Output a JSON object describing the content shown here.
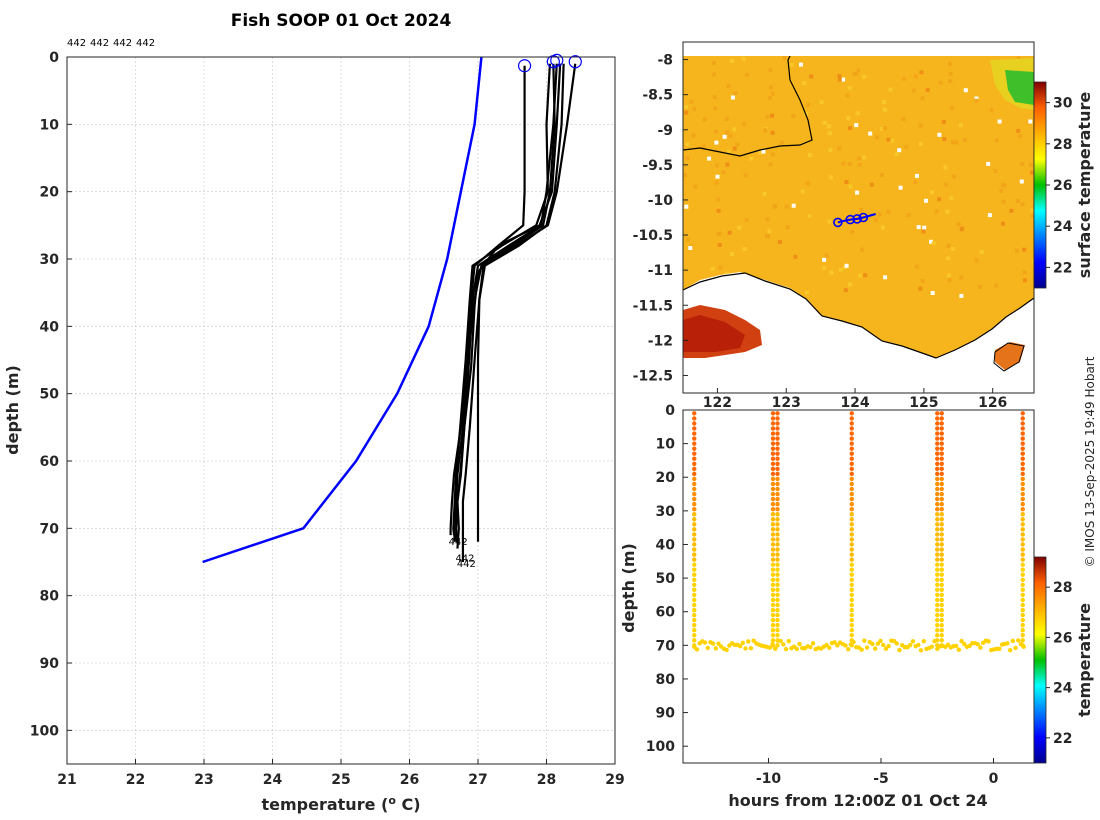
{
  "chart_data": [
    {
      "type": "line",
      "title": "Fish SOOP 01 Oct 2024",
      "xlabel": "temperature (",
      "xlabel_sup": "o",
      "xlabel_tail": " C)",
      "ylabel": "depth (m)",
      "xlim": [
        21,
        29
      ],
      "ylim": [
        0,
        105
      ],
      "xticks": [
        21,
        22,
        23,
        24,
        25,
        26,
        27,
        28,
        29
      ],
      "yticks": [
        0,
        10,
        20,
        30,
        40,
        50,
        60,
        70,
        80,
        90,
        100
      ],
      "header_labels": [
        "442",
        "442",
        "442",
        "442"
      ],
      "end_labels": [
        "442",
        "442",
        "442"
      ],
      "climatology": {
        "name": "climatology",
        "color": "#0000ff",
        "temperature": [
          27.05,
          26.95,
          26.75,
          26.55,
          26.28,
          25.82,
          25.22,
          24.45,
          22.98
        ],
        "depth": [
          0,
          10,
          20,
          30,
          40,
          50,
          60,
          70,
          75
        ]
      },
      "profiles": [
        {
          "temperature": [
            27.68,
            27.68,
            27.68,
            27.66,
            27.3,
            26.95,
            26.9,
            26.85,
            26.75,
            26.65,
            26.62,
            26.6,
            26.6
          ],
          "depth": [
            1.3,
            10,
            20,
            25,
            28,
            31,
            36,
            45,
            55,
            62,
            66,
            70,
            71
          ]
        },
        {
          "temperature": [
            28.1,
            28.12,
            28.05,
            27.95,
            27.5,
            27.05,
            26.95,
            26.85,
            26.78,
            26.7,
            26.68,
            26.65,
            26.66
          ],
          "depth": [
            1,
            10,
            20,
            25,
            28,
            31,
            36,
            45,
            55,
            62,
            66,
            70,
            72
          ]
        },
        {
          "temperature": [
            28.2,
            28.15,
            28.08,
            27.9,
            27.3,
            27.0,
            26.95,
            26.9,
            26.8,
            26.75,
            26.7,
            26.72,
            26.7
          ],
          "depth": [
            1,
            10,
            20,
            25,
            28,
            32,
            37,
            46,
            55,
            62,
            66,
            70,
            73
          ]
        },
        {
          "temperature": [
            28.05,
            28.0,
            28.02,
            27.85,
            27.35,
            26.92,
            26.88,
            26.82,
            26.74,
            26.68,
            26.66,
            26.64,
            26.65
          ],
          "depth": [
            1,
            10,
            20,
            25,
            28,
            31,
            36,
            45,
            55,
            62,
            66,
            70,
            71
          ]
        },
        {
          "temperature": [
            28.25,
            28.22,
            28.12,
            28.0,
            27.6,
            27.1,
            27.02,
            26.95,
            26.88,
            26.82,
            26.78,
            26.78,
            26.78
          ],
          "depth": [
            1,
            10,
            20,
            25,
            28,
            31,
            36,
            45,
            55,
            62,
            66,
            70,
            75
          ]
        },
        {
          "temperature": [
            28.42,
            28.3,
            28.15,
            28.02,
            27.55,
            27.08,
            27.02,
            27.0,
            27.0,
            27.0,
            27.0,
            27.0,
            27.0
          ],
          "depth": [
            1,
            10,
            20,
            25,
            28,
            31,
            36,
            45,
            55,
            62,
            66,
            70,
            72
          ]
        },
        {
          "temperature": [
            28.15,
            28.1,
            28.0,
            27.92,
            27.45,
            27.0,
            26.92,
            26.87,
            26.8,
            26.74,
            26.7,
            26.68,
            26.69
          ],
          "depth": [
            1,
            10,
            20,
            25,
            28,
            31,
            36,
            45,
            55,
            62,
            66,
            70,
            72
          ]
        }
      ],
      "surface_markers": {
        "temperature": [
          27.68,
          28.1,
          28.15,
          28.42
        ],
        "depth": [
          1.3,
          0.7,
          0.5,
          0.7
        ]
      }
    },
    {
      "type": "heatmap",
      "title": "surface temperature map",
      "xticks": [
        122,
        123,
        124,
        125,
        126
      ],
      "yticks": [
        -8,
        -8.5,
        -9,
        -9.5,
        -10,
        -10.5,
        -11,
        -11.5,
        -12,
        -12.5
      ],
      "xlim": [
        121.5,
        126.6
      ],
      "ylim": [
        -12.75,
        -7.75
      ],
      "colorbar_label": "surface temperature",
      "colorbar_ticks": [
        22,
        24,
        26,
        28,
        30
      ],
      "colorbar_range": [
        21,
        31
      ],
      "track": {
        "lon": [
          123.75,
          123.83,
          123.93,
          124.03,
          124.12,
          124.3
        ],
        "lat": [
          -10.32,
          -10.3,
          -10.28,
          -10.27,
          -10.25,
          -10.2
        ]
      },
      "track_markers": {
        "lon": [
          123.75,
          123.93,
          124.03,
          124.12
        ],
        "lat": [
          -10.32,
          -10.28,
          -10.27,
          -10.25
        ]
      }
    },
    {
      "type": "scatter",
      "xlabel": "hours from 12:00Z 01 Oct 24",
      "ylabel": "depth (m)",
      "xlim": [
        -13.8,
        1.8
      ],
      "ylim": [
        0,
        105
      ],
      "xticks": [
        -10,
        -5,
        0
      ],
      "yticks": [
        0,
        10,
        20,
        30,
        40,
        50,
        60,
        70,
        80,
        90,
        100
      ],
      "colorbar_label": "temperature",
      "colorbar_ticks": [
        22,
        24,
        26,
        28
      ],
      "colorbar_range": [
        21,
        29.2
      ],
      "cast_times": [
        -13.3,
        -9.8,
        -9.6,
        -6.3,
        -2.5,
        -2.3,
        1.3
      ],
      "bottom_depth": 70
    }
  ],
  "watermark": "© IMOS 13-Sep-2025 19:49 Hobart"
}
